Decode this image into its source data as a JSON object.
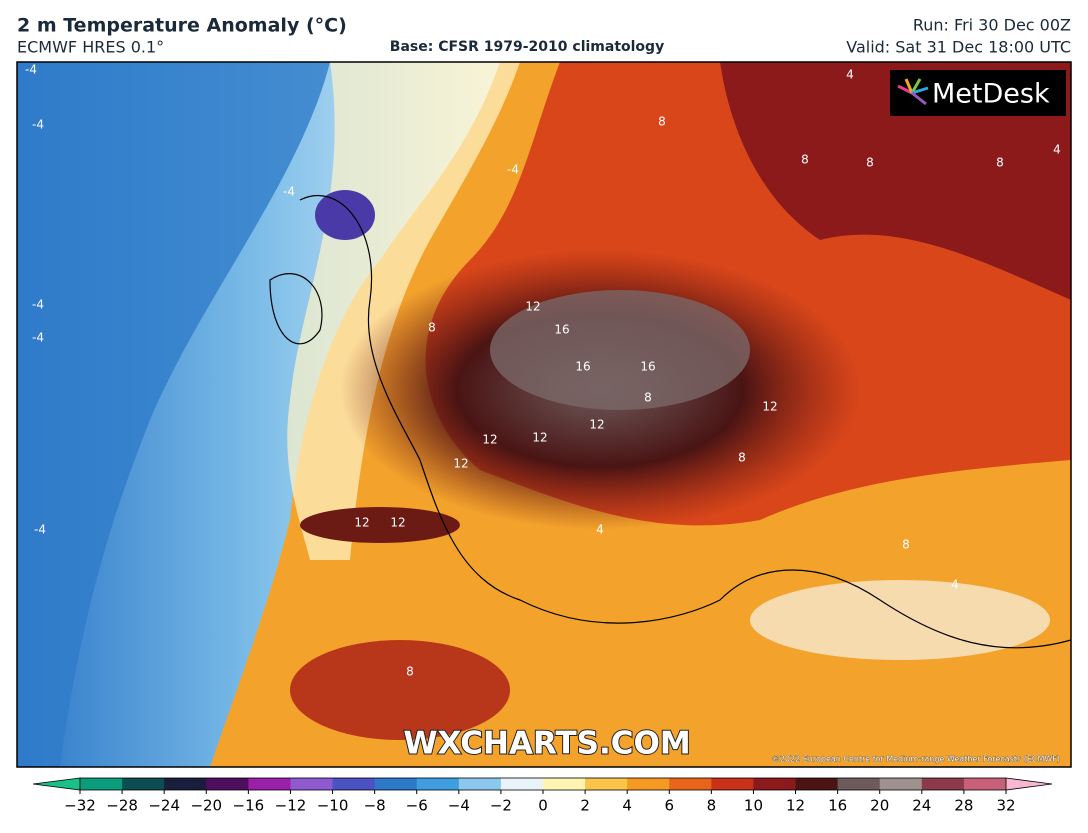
{
  "header": {
    "title": "2 m Temperature Anomaly (°C)",
    "model": "ECMWF HRES 0.1°",
    "base": "Base: CFSR 1979-2010 climatology",
    "run": "Run: Fri 30 Dec 00Z",
    "valid": "Valid: Sat 31 Dec 18:00 UTC"
  },
  "logo": "MetDesk",
  "watermark": "WXCHARTS.COM",
  "copyright": "©2022 European Centre for Medium-range Weather Forecasts (ECMWF)",
  "map": {
    "contour_labels": [
      -4,
      -4,
      -4,
      -4,
      -4,
      -4,
      -4,
      12,
      16,
      16,
      16,
      12,
      12,
      12,
      12,
      12,
      12,
      12,
      8,
      8,
      8,
      8,
      8,
      8,
      8,
      8,
      8,
      4,
      4,
      4,
      4
    ]
  },
  "colorbar": {
    "ticks": [
      {
        "value": -32,
        "label": "−32"
      },
      {
        "value": -28,
        "label": "−28"
      },
      {
        "value": -24,
        "label": "−24"
      },
      {
        "value": -20,
        "label": "−20"
      },
      {
        "value": -16,
        "label": "−16"
      },
      {
        "value": -12,
        "label": "−12"
      },
      {
        "value": -10,
        "label": "−10"
      },
      {
        "value": -8,
        "label": "−8"
      },
      {
        "value": -6,
        "label": "−6"
      },
      {
        "value": -4,
        "label": "−4"
      },
      {
        "value": -2,
        "label": "−2"
      },
      0,
      2,
      4,
      6,
      8,
      10,
      12,
      16,
      20,
      24,
      28,
      32
    ],
    "colors": [
      "#0a9c7c",
      "#0c4d52",
      "#1a1d3d",
      "#4b0f5e",
      "#9b1fa8",
      "#8f5ad0",
      "#4a52c4",
      "#2d78c8",
      "#3f9ee0",
      "#8cc8ee",
      "#e8f4fa",
      "#fff5b0",
      "#fcc44a",
      "#f59a23",
      "#e8641a",
      "#c8321a",
      "#8c1a1a",
      "#4a1414",
      "#6e5a5a",
      "#a09090",
      "#8c3a4a",
      "#c8607a"
    ],
    "under_color": "#1ac08a",
    "over_color": "#f5b8d0"
  }
}
